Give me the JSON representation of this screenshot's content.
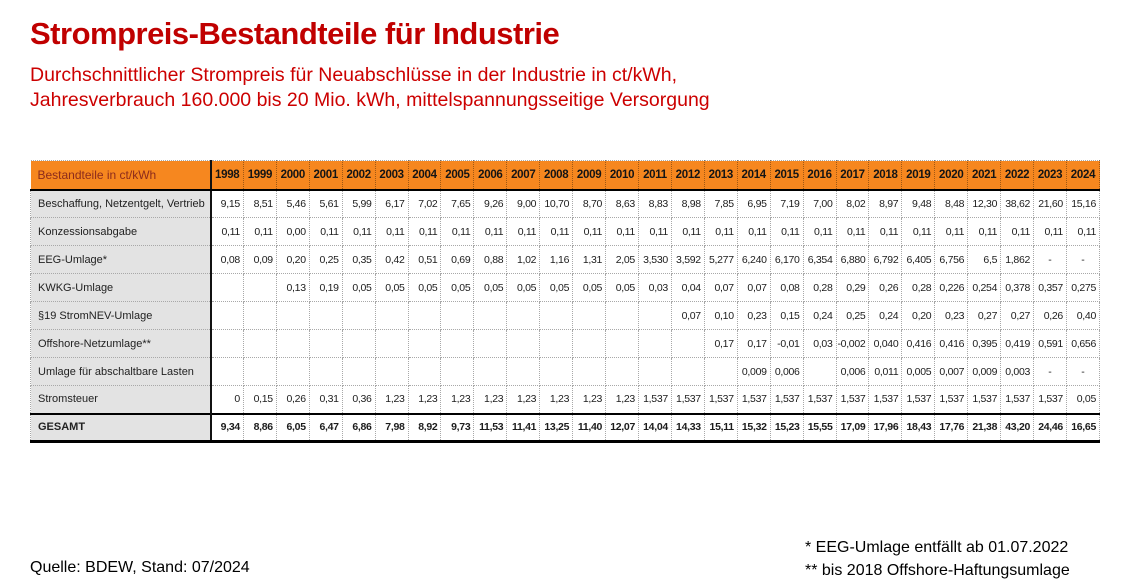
{
  "page": {
    "title": "Strompreis-Bestandteile für Industrie",
    "subtitle_lines": [
      "Durchschnittlicher Strompreis für Neuabschlüsse in der Industrie in ct/kWh,",
      "Jahresverbrauch 160.000 bis 20 Mio. kWh, mittelspannungsseitige Versorgung"
    ],
    "source": "Quelle: BDEW, Stand: 07/2024",
    "footnotes": [
      "* EEG-Umlage entfällt ab 01.07.2022",
      "** bis 2018 Offshore-Haftungsumlage"
    ]
  },
  "colors": {
    "title_red": "#C00000",
    "subtitle_red": "#CC0000",
    "header_orange": "#F6871F",
    "header_label_text": "#8C2B1C",
    "label_cell_bg": "#E3E3E3"
  },
  "chart_data": {
    "type": "table",
    "header_label": "Bestandteile in ct/kWh",
    "years": [
      "1998",
      "1999",
      "2000",
      "2001",
      "2002",
      "2003",
      "2004",
      "2005",
      "2006",
      "2007",
      "2008",
      "2009",
      "2010",
      "2011",
      "2012",
      "2013",
      "2014",
      "2015",
      "2016",
      "2017",
      "2018",
      "2019",
      "2020",
      "2021",
      "2022",
      "2023",
      "2024"
    ],
    "rows": [
      {
        "label": "Beschaffung, Netzentgelt, Vertrieb",
        "values": [
          "9,15",
          "8,51",
          "5,46",
          "5,61",
          "5,99",
          "6,17",
          "7,02",
          "7,65",
          "9,26",
          "9,00",
          "10,70",
          "8,70",
          "8,63",
          "8,83",
          "8,98",
          "7,85",
          "6,95",
          "7,19",
          "7,00",
          "8,02",
          "8,97",
          "9,48",
          "8,48",
          "12,30",
          "38,62",
          "21,60",
          "15,16"
        ]
      },
      {
        "label": "Konzessionsabgabe",
        "values": [
          "0,11",
          "0,11",
          "0,00",
          "0,11",
          "0,11",
          "0,11",
          "0,11",
          "0,11",
          "0,11",
          "0,11",
          "0,11",
          "0,11",
          "0,11",
          "0,11",
          "0,11",
          "0,11",
          "0,11",
          "0,11",
          "0,11",
          "0,11",
          "0,11",
          "0,11",
          "0,11",
          "0,11",
          "0,11",
          "0,11",
          "0,11"
        ]
      },
      {
        "label": "EEG-Umlage*",
        "values": [
          "0,08",
          "0,09",
          "0,20",
          "0,25",
          "0,35",
          "0,42",
          "0,51",
          "0,69",
          "0,88",
          "1,02",
          "1,16",
          "1,31",
          "2,05",
          "3,530",
          "3,592",
          "5,277",
          "6,240",
          "6,170",
          "6,354",
          "6,880",
          "6,792",
          "6,405",
          "6,756",
          "6,5",
          "1,862",
          "-",
          "-"
        ]
      },
      {
        "label": "KWKG-Umlage",
        "values": [
          "",
          "",
          "0,13",
          "0,19",
          "0,05",
          "0,05",
          "0,05",
          "0,05",
          "0,05",
          "0,05",
          "0,05",
          "0,05",
          "0,05",
          "0,03",
          "0,04",
          "0,07",
          "0,07",
          "0,08",
          "0,28",
          "0,29",
          "0,26",
          "0,28",
          "0,226",
          "0,254",
          "0,378",
          "0,357",
          "0,275"
        ]
      },
      {
        "label": "§19 StromNEV-Umlage",
        "values": [
          "",
          "",
          "",
          "",
          "",
          "",
          "",
          "",
          "",
          "",
          "",
          "",
          "",
          "",
          "0,07",
          "0,10",
          "0,23",
          "0,15",
          "0,24",
          "0,25",
          "0,24",
          "0,20",
          "0,23",
          "0,27",
          "0,27",
          "0,26",
          "0,40"
        ]
      },
      {
        "label": "Offshore-Netzumlage**",
        "values": [
          "",
          "",
          "",
          "",
          "",
          "",
          "",
          "",
          "",
          "",
          "",
          "",
          "",
          "",
          "",
          "0,17",
          "0,17",
          "-0,01",
          "0,03",
          "-0,002",
          "0,040",
          "0,416",
          "0,416",
          "0,395",
          "0,419",
          "0,591",
          "0,656"
        ]
      },
      {
        "label": "Umlage für abschaltbare Lasten",
        "values": [
          "",
          "",
          "",
          "",
          "",
          "",
          "",
          "",
          "",
          "",
          "",
          "",
          "",
          "",
          "",
          "",
          "0,009",
          "0,006",
          "",
          "0,006",
          "0,011",
          "0,005",
          "0,007",
          "0,009",
          "0,003",
          "-",
          "-"
        ]
      },
      {
        "label": "Stromsteuer",
        "values": [
          "0",
          "0,15",
          "0,26",
          "0,31",
          "0,36",
          "1,23",
          "1,23",
          "1,23",
          "1,23",
          "1,23",
          "1,23",
          "1,23",
          "1,23",
          "1,537",
          "1,537",
          "1,537",
          "1,537",
          "1,537",
          "1,537",
          "1,537",
          "1,537",
          "1,537",
          "1,537",
          "1,537",
          "1,537",
          "1,537",
          "0,05"
        ]
      },
      {
        "label": "GESAMT",
        "is_total": true,
        "values": [
          "9,34",
          "8,86",
          "6,05",
          "6,47",
          "6,86",
          "7,98",
          "8,92",
          "9,73",
          "11,53",
          "11,41",
          "13,25",
          "11,40",
          "12,07",
          "14,04",
          "14,33",
          "15,11",
          "15,32",
          "15,23",
          "15,55",
          "17,09",
          "17,96",
          "18,43",
          "17,76",
          "21,38",
          "43,20",
          "24,46",
          "16,65"
        ]
      }
    ]
  }
}
